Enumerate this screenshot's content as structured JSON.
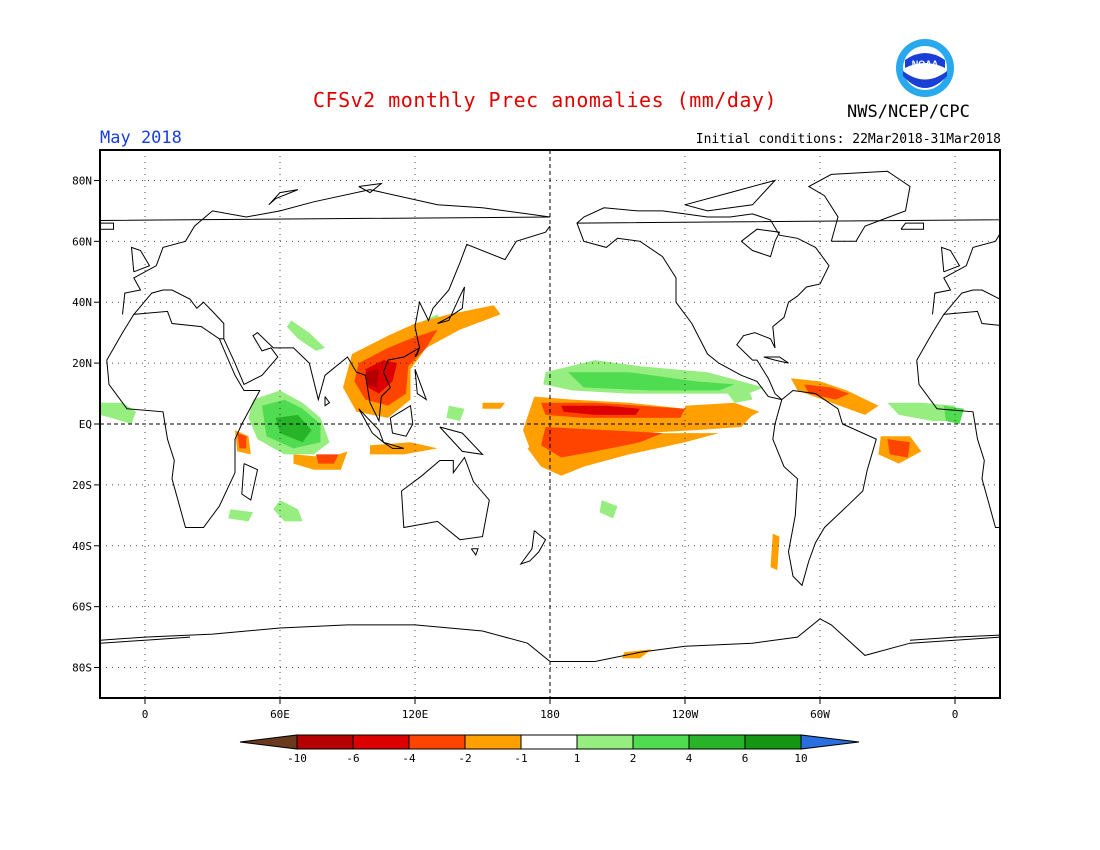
{
  "header": {
    "title": "CFSv2 monthly Prec anomalies (mm/day)",
    "month": "May 2018",
    "initial_conditions": "Initial conditions: 22Mar2018-31Mar2018",
    "agency": "NWS/NCEP/CPC",
    "logo_text": "NOAA"
  },
  "map": {
    "lat_labels": [
      "80N",
      "60N",
      "40N",
      "20N",
      "EQ",
      "20S",
      "40S",
      "60S",
      "80S"
    ],
    "lat_values": [
      80,
      60,
      40,
      20,
      0,
      -20,
      -40,
      -60,
      -80
    ],
    "lon_labels": [
      "0",
      "60E",
      "120E",
      "180",
      "120W",
      "60W",
      "0"
    ],
    "lon_values": [
      0,
      60,
      120,
      180,
      240,
      300,
      360
    ],
    "lon_range": [
      -20,
      380
    ],
    "lat_range": [
      -90,
      90
    ]
  },
  "legend": {
    "labels": [
      "-10",
      "-6",
      "-4",
      "-2",
      "-1",
      "1",
      "2",
      "4",
      "6",
      "10"
    ],
    "colors": [
      "#6b3a1e",
      "#b40000",
      "#dc0000",
      "#ff4400",
      "#ffa000",
      "#ffffff",
      "#96ee80",
      "#50dc50",
      "#28b428",
      "#149614",
      "#2a6fe0"
    ]
  },
  "colors": {
    "title": "#e00000",
    "month": "#1a3fd6",
    "dry_light": "#ffa000",
    "dry_mid": "#ff4400",
    "dry_strong": "#dc0000",
    "dry_extreme": "#b40000",
    "wet_light": "#96ee80",
    "wet_mid": "#50dc50",
    "wet_strong": "#28b428"
  }
}
